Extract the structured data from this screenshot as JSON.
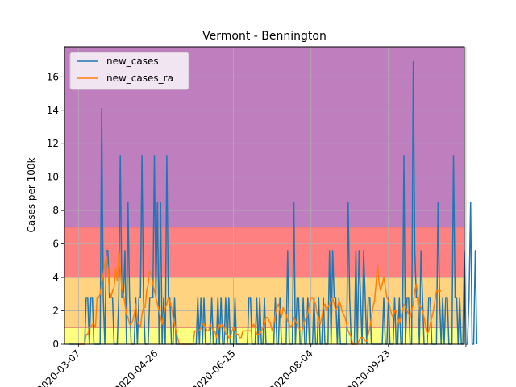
{
  "chart_data": {
    "type": "line",
    "title": "Vermont - Bennington",
    "xlabel": "",
    "ylabel": "Cases per 100k",
    "x_start": "2020-03-01",
    "x_end": "2020-11-06",
    "xlim": [
      "2020-02-27",
      "2020-11-11"
    ],
    "ylim": [
      0,
      17.8
    ],
    "xticks": [
      "2020-03-07",
      "2020-04-26",
      "2020-06-15",
      "2020-08-04",
      "2020-09-23",
      "2020-11-12"
    ],
    "xtick_labels": [
      "2020-03-07",
      "2020-04-26",
      "2020-06-15",
      "2020-08-04",
      "2020-09-23",
      ""
    ],
    "yticks": [
      0,
      2,
      4,
      6,
      8,
      10,
      12,
      14,
      16
    ],
    "grid": true,
    "legend_position": "top-left",
    "risk_bands": [
      {
        "from": 0,
        "to": 1,
        "color": "#ffff80"
      },
      {
        "from": 1,
        "to": 4,
        "color": "#ffd37f"
      },
      {
        "from": 4,
        "to": 7,
        "color": "#ff8080"
      },
      {
        "from": 7,
        "to": 17.8,
        "color": "#bf7fbf"
      }
    ],
    "band_border_color": "#e07070",
    "series": [
      {
        "name": "new_cases",
        "color": "#1f77b4",
        "values": [
          0,
          0,
          0,
          0,
          0,
          0,
          0,
          0,
          0,
          0,
          0,
          2.8,
          2.8,
          0,
          2.8,
          2.8,
          0,
          0,
          0,
          0,
          0,
          14.1,
          2.8,
          0,
          5.6,
          5.6,
          2.8,
          2.8,
          2.8,
          0,
          0,
          0,
          2.8,
          11.3,
          2.8,
          2.8,
          5.6,
          0,
          8.5,
          2.8,
          0,
          0,
          0,
          2.8,
          0,
          2.8,
          2.8,
          11.3,
          2.8,
          0,
          0,
          0,
          2.8,
          2.8,
          2.8,
          11.3,
          2.8,
          8.5,
          0,
          8.5,
          0,
          2.8,
          0,
          11.3,
          2.8,
          2.8,
          0,
          0,
          2.8,
          0,
          0,
          0,
          0,
          0,
          0,
          0,
          0,
          0,
          0,
          0,
          0,
          0,
          0,
          2.8,
          0,
          2.8,
          0,
          2.8,
          0,
          0,
          0,
          0,
          2.8,
          0,
          0,
          0,
          2.8,
          0,
          2.8,
          0,
          0,
          2.8,
          0,
          2.8,
          0,
          0,
          0,
          2.8,
          0,
          0,
          0,
          0,
          0,
          0,
          0,
          0,
          2.8,
          2.8,
          0,
          0,
          0,
          2.8,
          0,
          2.8,
          0,
          0,
          2.8,
          0,
          0,
          0,
          0,
          0,
          0,
          2.8,
          0,
          0,
          2.8,
          0,
          0,
          0,
          0,
          5.6,
          0,
          0,
          0,
          8.5,
          0,
          2.8,
          2.8,
          0,
          0,
          2.8,
          0,
          0,
          2.8,
          0,
          0,
          0,
          2.8,
          0,
          0,
          2.8,
          0,
          0,
          2.8,
          0,
          0,
          0,
          5.6,
          0,
          5.6,
          2.8,
          2.8,
          0,
          2.8,
          0,
          0,
          0,
          0,
          0,
          8.5,
          2.8,
          0,
          0,
          0,
          5.6,
          0,
          5.6,
          2.8,
          0,
          5.6,
          2.8,
          0,
          2.8,
          2.8,
          0,
          0,
          0,
          0,
          0,
          0,
          0,
          0,
          2.8,
          0,
          0,
          2.8,
          0,
          0,
          0,
          2.8,
          0,
          0,
          2.8,
          0,
          0,
          11.3,
          0,
          2.8,
          2.8,
          0,
          0,
          16.9,
          5.6,
          2.8,
          2.8,
          0,
          5.6,
          2.8,
          0,
          0,
          0,
          2.8,
          2.8,
          0,
          0,
          0,
          0,
          8.5,
          2.8,
          0,
          2.8,
          0,
          2.8,
          2.8,
          0,
          0,
          0,
          11.3,
          2.8,
          2.8,
          0,
          2.8,
          0,
          0,
          5.6,
          0,
          0,
          2.8,
          8.5,
          0,
          0,
          5.6,
          0
        ]
      },
      {
        "name": "new_cases_ra",
        "color": "#ff7f0e",
        "start_index": 6,
        "values": [
          0,
          0,
          0,
          0,
          0,
          0.6,
          0.6,
          1.0,
          1.0,
          1.2,
          1.2,
          1.0,
          2.8,
          2.8,
          3.0,
          3.6,
          4.2,
          4.8,
          5.2,
          4.6,
          3.2,
          2.8,
          3.2,
          3.4,
          4.6,
          3.8,
          5.6,
          4.4,
          3.4,
          3.0,
          2.4,
          1.8,
          1.6,
          1.2,
          1.2,
          1.4,
          1.8,
          2.4,
          1.4,
          1.2,
          1.0,
          1.8,
          2.2,
          2.2,
          3.2,
          3.6,
          4.4,
          4.2,
          3.6,
          3.2,
          2.8,
          2.4,
          2.0,
          1.6,
          1.2,
          1.8,
          2.2,
          2.4,
          2.8,
          2.6,
          2.2,
          1.6,
          1.2,
          0.8,
          0.4,
          0,
          0,
          0,
          0,
          0,
          0,
          0,
          0,
          0,
          0,
          0.8,
          0.8,
          0.8,
          0.8,
          1.0,
          1.2,
          1.2,
          1.0,
          0.8,
          0.8,
          1.2,
          1.0,
          0.8,
          0.8,
          0.4,
          0.8,
          1.2,
          1.0,
          1.2,
          1.0,
          0.6,
          0.6,
          0.4,
          0.4,
          0.8,
          1.0,
          0.8,
          0.6,
          0.6,
          0.4,
          0.4,
          0.8,
          0.8,
          0.8,
          0.8,
          0.8,
          0.8,
          1.0,
          1.2,
          1.0,
          0.6,
          0.6,
          0.6,
          0.8,
          1.0,
          1.2,
          1.6,
          1.6,
          1.4,
          1.2,
          0.8,
          1.2,
          1.8,
          2.2,
          2.4,
          2.0,
          1.6,
          2.2,
          2.0,
          1.8,
          1.4,
          1.2,
          1.0,
          1.2,
          1.6,
          1.4,
          1.2,
          1.0,
          0.8,
          0.8,
          1.0,
          1.4,
          1.6,
          1.8,
          2.4,
          2.8,
          2.8,
          2.6,
          2.4,
          1.8,
          1.6,
          1.2,
          1.6,
          2.2,
          2.4,
          2.0,
          2.2,
          2.4,
          2.6,
          2.8,
          2.4,
          2.0,
          2.2,
          2.6,
          2.4,
          2.0,
          1.8,
          1.6,
          1.2,
          0.8,
          0.6,
          0.4,
          0,
          0,
          0,
          0,
          0.2,
          0.4,
          0.4,
          0.4,
          0.2,
          0.2,
          0.6,
          1.0,
          1.6,
          2.2,
          2.6,
          3.6,
          4.8,
          3.6,
          3.2,
          3.6,
          4.0,
          3.4,
          2.8,
          2.6,
          2.2,
          1.8,
          1.6,
          2.0,
          2.0,
          1.6,
          1.2,
          1.6,
          2.0,
          2.4,
          2.2,
          2.0,
          1.8,
          1.6,
          2.0,
          2.4,
          3.2,
          3.6,
          3.0,
          2.4,
          2.2,
          2.0,
          1.6,
          1.0,
          0.6,
          0.8,
          1.2,
          1.6,
          2.0,
          2.6,
          3.2,
          3.2,
          3.2,
          3.2
        ]
      }
    ]
  }
}
